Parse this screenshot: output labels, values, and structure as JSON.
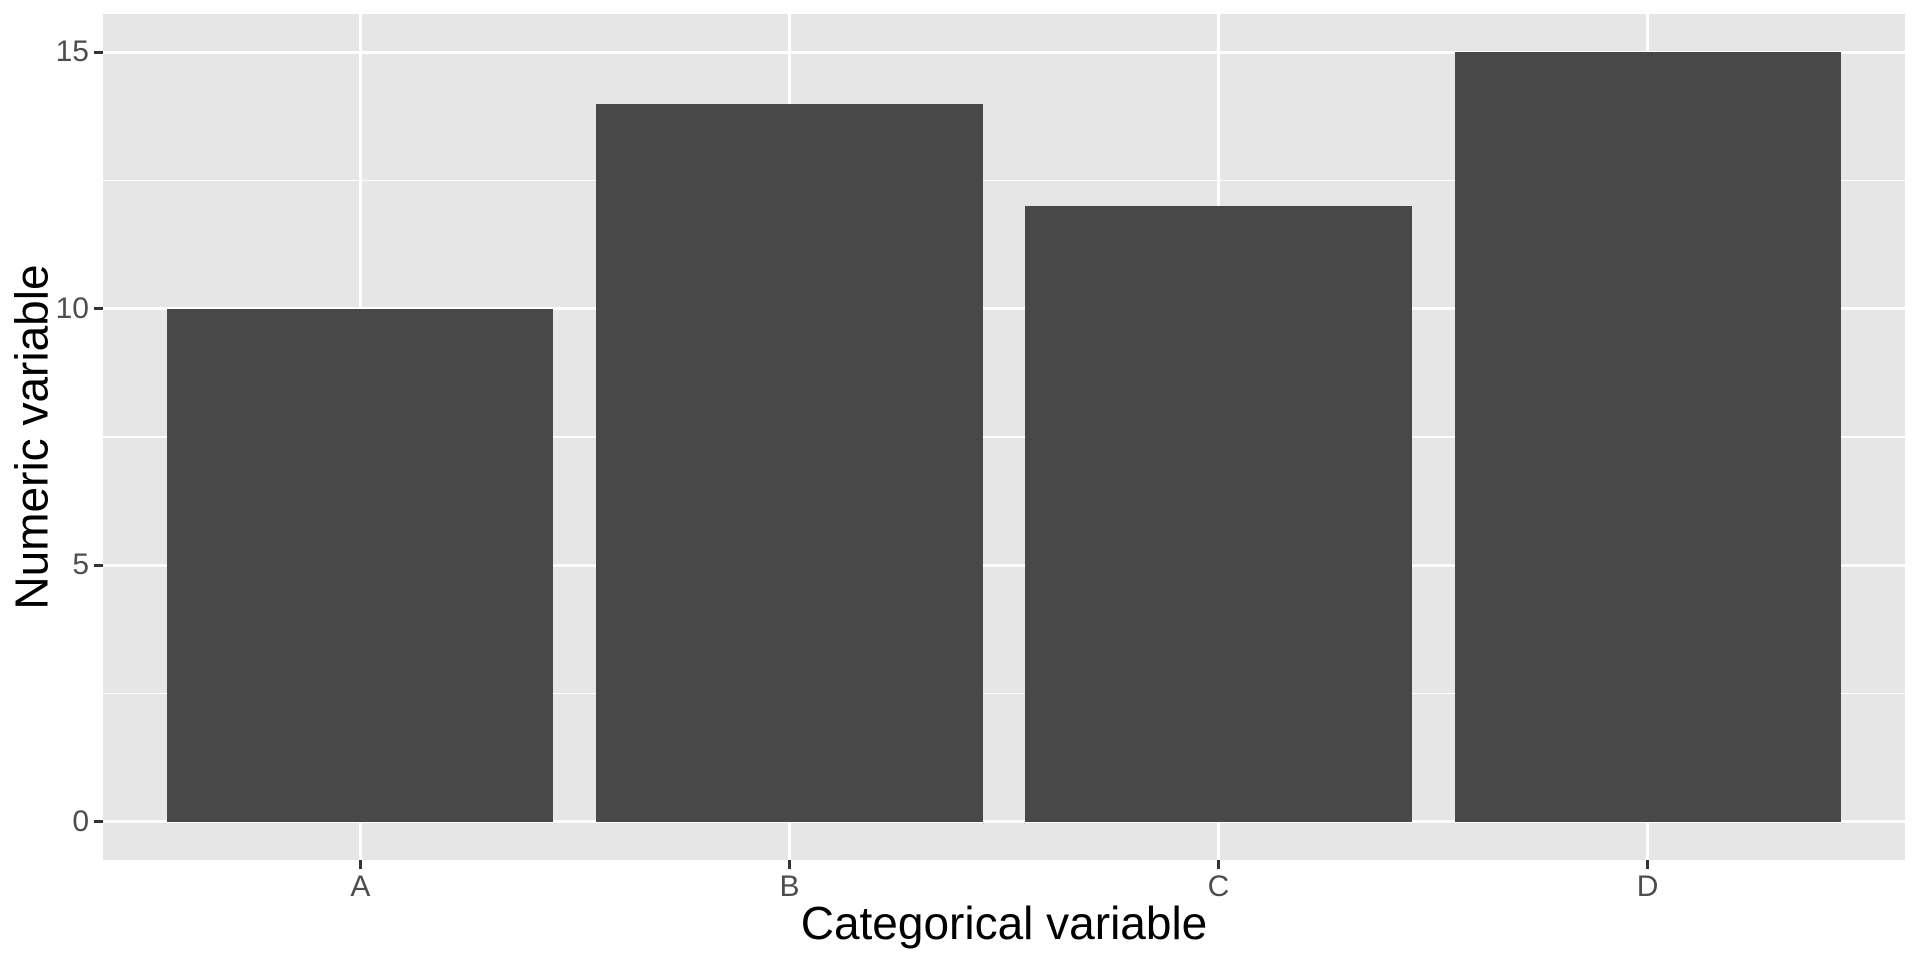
{
  "chart_data": {
    "type": "bar",
    "title": "",
    "categories": [
      "A",
      "B",
      "C",
      "D"
    ],
    "values": [
      10,
      14,
      12,
      15
    ],
    "xlabel": "Categorical variable",
    "ylabel": "Numeric variable",
    "y_ticks_major": [
      0,
      5,
      10,
      15
    ],
    "y_ticks_minor": [
      2.5,
      7.5,
      12.5
    ],
    "y_domain": [
      -0.75,
      15.75
    ],
    "x_domain": [
      0.4,
      4.6
    ],
    "bar_width_units": 0.9,
    "grid": true,
    "legend": "none",
    "style": {
      "bar_fill": "#484848",
      "panel_bg": "#E6E6E6",
      "grid_color": "#FFFFFF",
      "tick_label_color": "#4D4D4D",
      "tick_mark_color": "#333333",
      "axis_title_color": "#000000",
      "figure_bg": "#FFFFFF"
    }
  }
}
